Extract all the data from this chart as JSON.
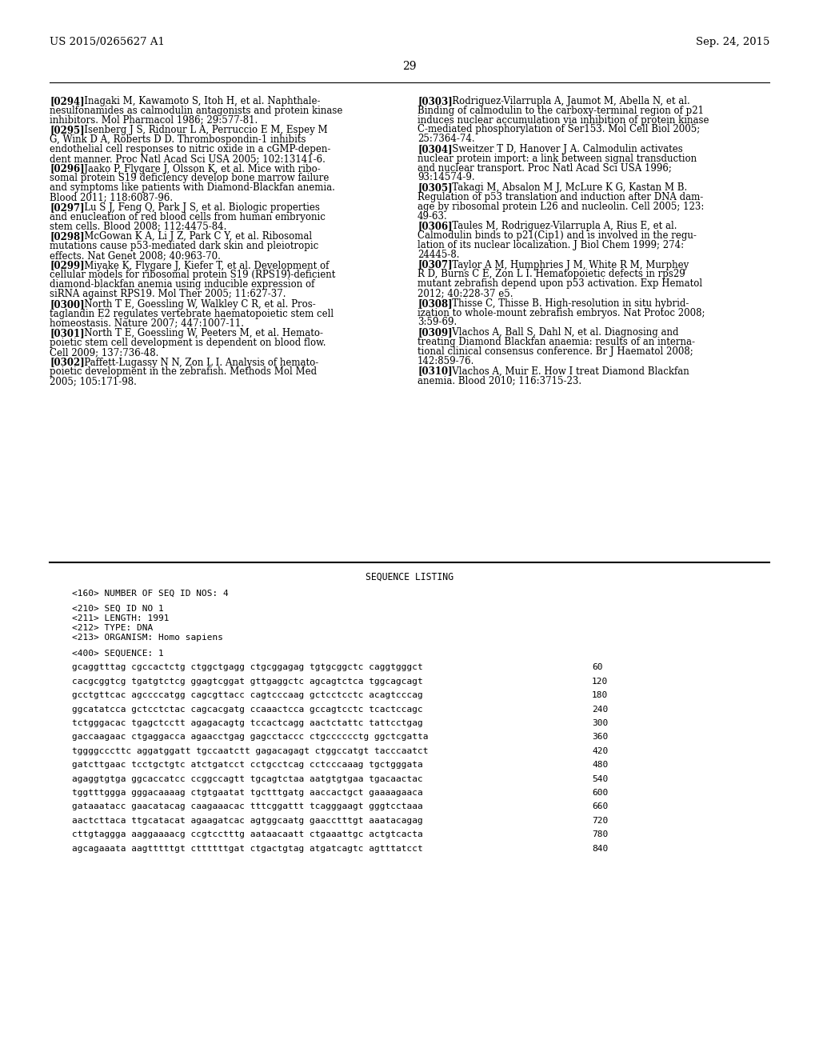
{
  "background_color": "#ffffff",
  "header_left": "US 2015/0265627 A1",
  "header_right": "Sep. 24, 2015",
  "page_number": "29",
  "left_refs": [
    {
      "ref": "[0294]",
      "lines": [
        [
          "[0294]",
          "   Inagaki M, Kawamoto S, Itoh H, et al. Naphthale-"
        ],
        [
          "",
          "nesulfonamides as calmodulin antagonists and protein kinase"
        ],
        [
          "",
          "inhibitors. Mol Pharmacol 1986; 29:577-81."
        ]
      ]
    },
    {
      "ref": "[0295]",
      "lines": [
        [
          "[0295]",
          "   Isenberg J S, Ridnour L A, Perruccio E M, Espey M"
        ],
        [
          "",
          "G, Wink D A, Roberts D D. Thrombospondin-1 inhibits"
        ],
        [
          "",
          "endothelial cell responses to nitric oxide in a cGMP-depen-"
        ],
        [
          "",
          "dent manner. Proc Natl Acad Sci USA 2005; 102:13141-6."
        ]
      ]
    },
    {
      "ref": "[0296]",
      "lines": [
        [
          "[0296]",
          "   Jaako P, Flygare J, Olsson K, et al. Mice with ribo-"
        ],
        [
          "",
          "somal protein S19 deficiency develop bone marrow failure"
        ],
        [
          "",
          "and symptoms like patients with Diamond-Blackfan anemia."
        ],
        [
          "",
          "Blood 2011; 118:6087-96."
        ]
      ]
    },
    {
      "ref": "[0297]",
      "lines": [
        [
          "[0297]",
          "   Lu S J, Feng Q, Park J S, et al. Biologic properties"
        ],
        [
          "",
          "and enucleation of red blood cells from human embryonic"
        ],
        [
          "",
          "stem cells. Blood 2008; 112:4475-84."
        ]
      ]
    },
    {
      "ref": "[0298]",
      "lines": [
        [
          "[0298]",
          "   McGowan K A, Li J Z, Park C Y, et al. Ribosomal"
        ],
        [
          "",
          "mutations cause p53-mediated dark skin and pleiotropic"
        ],
        [
          "",
          "effects. Nat Genet 2008; 40:963-70."
        ]
      ]
    },
    {
      "ref": "[0299]",
      "lines": [
        [
          "[0299]",
          "   Miyake K, Flygare J, Kiefer T, et al. Development of"
        ],
        [
          "",
          "cellular models for ribosomal protein S19 (RPS19)-deficient"
        ],
        [
          "",
          "diamond-blackfan anemia using inducible expression of"
        ],
        [
          "",
          "siRNA against RPS19. Mol Ther 2005; 11:627-37."
        ]
      ]
    },
    {
      "ref": "[0300]",
      "lines": [
        [
          "[0300]",
          "   North T E, Goessling W, Walkley C R, et al. Pros-"
        ],
        [
          "",
          "taglandin E2 regulates vertebrate haematopoietic stem cell"
        ],
        [
          "",
          "homeostasis. Nature 2007; 447:1007-11."
        ]
      ]
    },
    {
      "ref": "[0301]",
      "lines": [
        [
          "[0301]",
          "   North T E, Goessling W, Peeters M, et al. Hemato-"
        ],
        [
          "",
          "poietic stem cell development is dependent on blood flow."
        ],
        [
          "",
          "Cell 2009; 137:736-48."
        ]
      ]
    },
    {
      "ref": "[0302]",
      "lines": [
        [
          "[0302]",
          "   Paffett-Lugassy N N, Zon L I. Analysis of hemato-"
        ],
        [
          "",
          "poietic development in the zebrafish. Methods Mol Med"
        ],
        [
          "",
          "2005; 105:171-98."
        ]
      ]
    }
  ],
  "right_refs": [
    {
      "ref": "[0303]",
      "lines": [
        [
          "[0303]",
          "   Rodriguez-Vilarrupla A, Jaumot M, Abella N, et al."
        ],
        [
          "",
          "Binding of calmodulin to the carboxy-terminal region of p21"
        ],
        [
          "",
          "induces nuclear accumulation via inhibition of protein kinase"
        ],
        [
          "",
          "C-mediated phosphorylation of Ser153. Mol Cell Biol 2005;"
        ],
        [
          "",
          "25:7364-74."
        ]
      ]
    },
    {
      "ref": "[0304]",
      "lines": [
        [
          "[0304]",
          "   Sweitzer T D, Hanover J A. Calmodulin activates"
        ],
        [
          "",
          "nuclear protein import: a link between signal transduction"
        ],
        [
          "",
          "and nuclear transport. Proc Natl Acad Sci USA 1996;"
        ],
        [
          "",
          "93:14574-9."
        ]
      ]
    },
    {
      "ref": "[0305]",
      "lines": [
        [
          "[0305]",
          "   Takagi M, Absalon M J, McLure K G, Kastan M B."
        ],
        [
          "",
          "Regulation of p53 translation and induction after DNA dam-"
        ],
        [
          "",
          "age by ribosomal protein L26 and nucleolin. Cell 2005; 123:"
        ],
        [
          "",
          "49-63."
        ]
      ]
    },
    {
      "ref": "[0306]",
      "lines": [
        [
          "[0306]",
          "   Taules M, Rodriguez-Vilarrupla A, Rius E, et al."
        ],
        [
          "",
          "Calmodulin binds to p21(Cip1) and is involved in the regu-"
        ],
        [
          "",
          "lation of its nuclear localization. J Biol Chem 1999; 274:"
        ],
        [
          "",
          "24445-8."
        ]
      ]
    },
    {
      "ref": "[0307]",
      "lines": [
        [
          "[0307]",
          "   Taylor A M, Humphries J M, White R M, Murphey"
        ],
        [
          "",
          "R D, Burns C E, Zon L I. Hematopoietic defects in rps29"
        ],
        [
          "",
          "mutant zebrafish depend upon p53 activation. Exp Hematol"
        ],
        [
          "",
          "2012; 40:228-37 e5."
        ]
      ]
    },
    {
      "ref": "[0308]",
      "lines": [
        [
          "[0308]",
          "   Thisse C, Thisse B. High-resolution in situ hybrid-"
        ],
        [
          "",
          "ization to whole-mount zebrafish embryos. Nat Protoc 2008;"
        ],
        [
          "",
          "3:59-69."
        ]
      ]
    },
    {
      "ref": "[0309]",
      "lines": [
        [
          "[0309]",
          "   Vlachos A, Ball S, Dahl N, et al. Diagnosing and"
        ],
        [
          "",
          "treating Diamond Blackfan anaemia: results of an interna-"
        ],
        [
          "",
          "tional clinical consensus conference. Br J Haematol 2008;"
        ],
        [
          "",
          "142:859-76."
        ]
      ]
    },
    {
      "ref": "[0310]",
      "lines": [
        [
          "[0310]",
          "   Vlachos A, Muir E. How I treat Diamond Blackfan"
        ],
        [
          "",
          "anemia. Blood 2010; 116:3715-23."
        ]
      ]
    }
  ],
  "seq_header": "SEQUENCE LISTING",
  "seq_meta_lines": [
    "<160> NUMBER OF SEQ ID NOS: 4",
    "",
    "<210> SEQ ID NO 1",
    "<211> LENGTH: 1991",
    "<212> TYPE: DNA",
    "<213> ORGANISM: Homo sapiens",
    "",
    "<400> SEQUENCE: 1"
  ],
  "seq_data": [
    [
      "gcaggtttag cgccactctg ctggctgagg ctgcggagag tgtgcggctc caggtgggct",
      "60"
    ],
    [
      "cacgcggtcg tgatgtctcg ggagtcggat gttgaggctc agcagtctca tggcagcagt",
      "120"
    ],
    [
      "gcctgttcac agccccatgg cagcgttacc cagtcccaag gctcctcctc acagtcccag",
      "180"
    ],
    [
      "ggcatatcca gctcctctac cagcacgatg ccaaactcca gccagtcctc tcactccagc",
      "240"
    ],
    [
      "tctgggacac tgagctcctt agagacagtg tccactcagg aactctattc tattcctgag",
      "300"
    ],
    [
      "gaccaagaac ctgaggacca agaacctgag gagcctaccc ctgcccccctg ggctcgatta",
      "360"
    ],
    [
      "tggggcccttc aggatggatt tgccaatctt gagacagagt ctggccatgt tacccaatct",
      "420"
    ],
    [
      "gatcttgaac tcctgctgtc atctgatcct cctgcctcag cctcccaaag tgctgggata",
      "480"
    ],
    [
      "agaggtgtga ggcaccatcc ccggccagtt tgcagtctaa aatgtgtgaa tgacaactac",
      "540"
    ],
    [
      "tggtttggga gggacaaaag ctgtgaatat tgctttgatg aaccactgct gaaaagaaca",
      "600"
    ],
    [
      "gataaatacc gaacatacag caagaaacac tttcggattt tcagggaagt gggtcctaaa",
      "660"
    ],
    [
      "aactcttaca ttgcatacat agaagatcac agtggcaatg gaacctttgt aaatacagag",
      "720"
    ],
    [
      "cttgtaggga aaggaaaacg ccgtcctttg aataacaatt ctgaaattgc actgtcacta",
      "780"
    ],
    [
      "agcagaaata aagtttttgt cttttttgat ctgactgtag atgatcagtc agtttatcct",
      "840"
    ]
  ]
}
